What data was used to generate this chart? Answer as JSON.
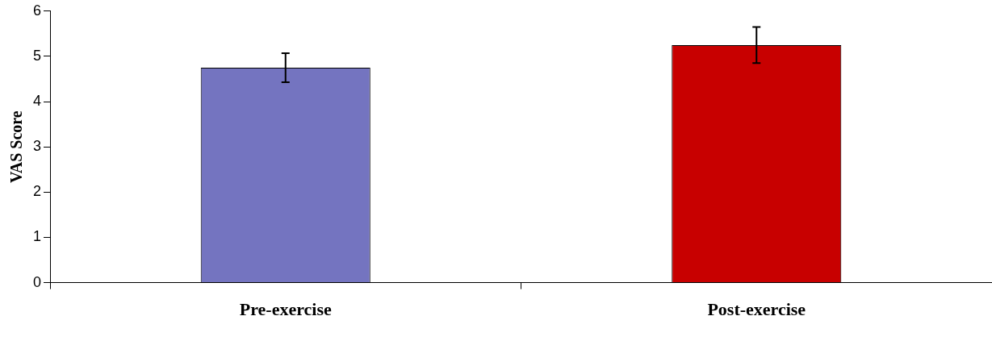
{
  "chart_data": {
    "type": "bar",
    "ylabel": "VAS Score",
    "categories": [
      "Pre-exercise",
      "Post-exercise"
    ],
    "series": [
      {
        "colors": [
          "#7474c0",
          "#c80000"
        ],
        "values": [
          4.75,
          5.25
        ],
        "errors": [
          0.32,
          0.4
        ]
      }
    ],
    "ylim": [
      0,
      6
    ],
    "yticks": [
      0,
      1,
      2,
      3,
      4,
      5,
      6
    ],
    "grid": false,
    "legend": false
  }
}
